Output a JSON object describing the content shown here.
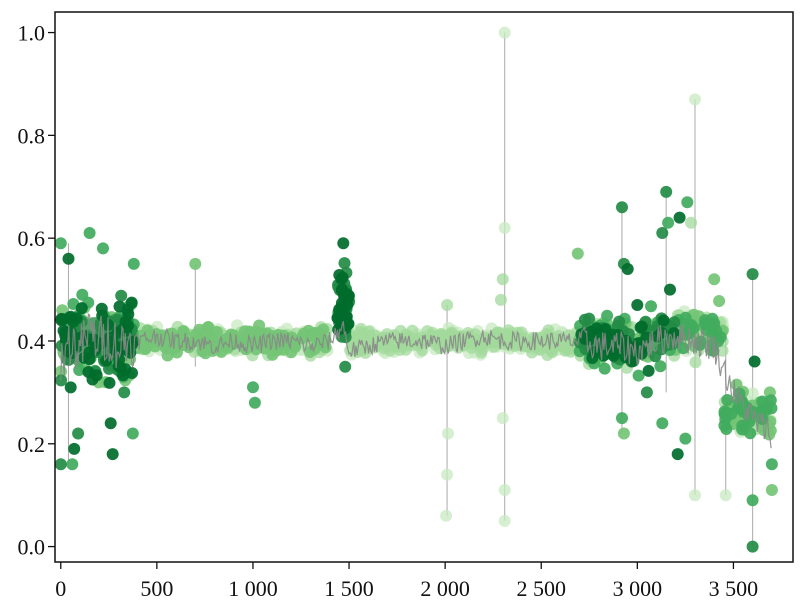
{
  "chart_data": {
    "type": "scatter",
    "title": "",
    "xlabel": "",
    "ylabel": "",
    "xlim": [
      -30,
      3810
    ],
    "ylim": [
      -0.03,
      1.04
    ],
    "grid": false,
    "legend": "none",
    "x_ticks": [
      {
        "value": 0,
        "label": "0"
      },
      {
        "value": 500,
        "label": "500"
      },
      {
        "value": 1000,
        "label": "1 000"
      },
      {
        "value": 1500,
        "label": "1 500"
      },
      {
        "value": 2000,
        "label": "2 000"
      },
      {
        "value": 2500,
        "label": "2 500"
      },
      {
        "value": 3000,
        "label": "3 000"
      },
      {
        "value": 3500,
        "label": "3 500"
      }
    ],
    "y_ticks": [
      {
        "value": 0.0,
        "label": "0.0"
      },
      {
        "value": 0.2,
        "label": "0.2"
      },
      {
        "value": 0.4,
        "label": "0.4"
      },
      {
        "value": 0.6,
        "label": "0.6"
      },
      {
        "value": 0.8,
        "label": "0.8"
      },
      {
        "value": 1.0,
        "label": "1.0"
      }
    ],
    "colors": {
      "trace": "#888888",
      "greens": [
        "#c7e9c0",
        "#a1d99b",
        "#74c476",
        "#41ab5d",
        "#238b45",
        "#006d2c"
      ]
    },
    "trace": [
      [
        0,
        0.36
      ],
      [
        50,
        0.4
      ],
      [
        100,
        0.38
      ],
      [
        150,
        0.42
      ],
      [
        200,
        0.4
      ],
      [
        250,
        0.41
      ],
      [
        300,
        0.39
      ],
      [
        350,
        0.4
      ],
      [
        400,
        0.4
      ],
      [
        500,
        0.41
      ],
      [
        600,
        0.4
      ],
      [
        700,
        0.4
      ],
      [
        800,
        0.39
      ],
      [
        900,
        0.4
      ],
      [
        1000,
        0.39
      ],
      [
        1100,
        0.4
      ],
      [
        1200,
        0.4
      ],
      [
        1300,
        0.39
      ],
      [
        1400,
        0.4
      ],
      [
        1470,
        0.43
      ],
      [
        1500,
        0.38
      ],
      [
        1600,
        0.39
      ],
      [
        1700,
        0.4
      ],
      [
        1800,
        0.4
      ],
      [
        1900,
        0.4
      ],
      [
        2000,
        0.39
      ],
      [
        2100,
        0.4
      ],
      [
        2200,
        0.41
      ],
      [
        2300,
        0.4
      ],
      [
        2400,
        0.4
      ],
      [
        2500,
        0.4
      ],
      [
        2600,
        0.4
      ],
      [
        2700,
        0.4
      ],
      [
        2800,
        0.39
      ],
      [
        2900,
        0.39
      ],
      [
        3000,
        0.38
      ],
      [
        3100,
        0.4
      ],
      [
        3200,
        0.41
      ],
      [
        3300,
        0.4
      ],
      [
        3400,
        0.39
      ],
      [
        3500,
        0.3
      ],
      [
        3600,
        0.25
      ],
      [
        3700,
        0.22
      ]
    ],
    "segments": [
      {
        "x_start": 0,
        "x_end": 380,
        "y_center": 0.4,
        "spread": 0.13,
        "shade_min": 2,
        "shade_max": 5,
        "count": 260
      },
      {
        "x_start": 380,
        "x_end": 1400,
        "y_center": 0.4,
        "spread": 0.045,
        "shade_min": 0,
        "shade_max": 2,
        "count": 360
      },
      {
        "x_start": 1440,
        "x_end": 1500,
        "y_center": 0.47,
        "spread": 0.1,
        "shade_min": 4,
        "shade_max": 5,
        "count": 60
      },
      {
        "x_start": 1500,
        "x_end": 2700,
        "y_center": 0.4,
        "spread": 0.04,
        "shade_min": 0,
        "shade_max": 1,
        "count": 380
      },
      {
        "x_start": 2700,
        "x_end": 3200,
        "y_center": 0.4,
        "spread": 0.08,
        "shade_min": 1,
        "shade_max": 5,
        "count": 240
      },
      {
        "x_start": 3200,
        "x_end": 3450,
        "y_center": 0.42,
        "spread": 0.07,
        "shade_min": 0,
        "shade_max": 3,
        "count": 100
      },
      {
        "x_start": 3450,
        "x_end": 3700,
        "y_center": 0.26,
        "spread": 0.07,
        "shade_min": 0,
        "shade_max": 3,
        "count": 110
      }
    ],
    "outliers": [
      {
        "x": 0,
        "y": 0.59,
        "shade": 3
      },
      {
        "x": 0,
        "y": 0.16,
        "shade": 4
      },
      {
        "x": 40,
        "y": 0.56,
        "shade": 5
      },
      {
        "x": 70,
        "y": 0.19,
        "shade": 5
      },
      {
        "x": 90,
        "y": 0.22,
        "shade": 4
      },
      {
        "x": 60,
        "y": 0.16,
        "shade": 3
      },
      {
        "x": 150,
        "y": 0.61,
        "shade": 3
      },
      {
        "x": 220,
        "y": 0.58,
        "shade": 3
      },
      {
        "x": 260,
        "y": 0.24,
        "shade": 5
      },
      {
        "x": 270,
        "y": 0.18,
        "shade": 5
      },
      {
        "x": 330,
        "y": 0.3,
        "shade": 4
      },
      {
        "x": 380,
        "y": 0.55,
        "shade": 3
      },
      {
        "x": 375,
        "y": 0.22,
        "shade": 3
      },
      {
        "x": 700,
        "y": 0.55,
        "shade": 2
      },
      {
        "x": 1000,
        "y": 0.31,
        "shade": 3
      },
      {
        "x": 1010,
        "y": 0.28,
        "shade": 3
      },
      {
        "x": 1470,
        "y": 0.59,
        "shade": 5
      },
      {
        "x": 1480,
        "y": 0.35,
        "shade": 4
      },
      {
        "x": 2010,
        "y": 0.47,
        "shade": 1
      },
      {
        "x": 2015,
        "y": 0.22,
        "shade": 0
      },
      {
        "x": 2010,
        "y": 0.14,
        "shade": 0
      },
      {
        "x": 2005,
        "y": 0.06,
        "shade": 0
      },
      {
        "x": 2310,
        "y": 1.0,
        "shade": 0
      },
      {
        "x": 2310,
        "y": 0.62,
        "shade": 0
      },
      {
        "x": 2310,
        "y": 0.11,
        "shade": 0
      },
      {
        "x": 2310,
        "y": 0.05,
        "shade": 0
      },
      {
        "x": 2300,
        "y": 0.52,
        "shade": 1
      },
      {
        "x": 2290,
        "y": 0.48,
        "shade": 1
      },
      {
        "x": 2300,
        "y": 0.25,
        "shade": 0
      },
      {
        "x": 2690,
        "y": 0.57,
        "shade": 2
      },
      {
        "x": 2700,
        "y": 0.38,
        "shade": 3
      },
      {
        "x": 2920,
        "y": 0.66,
        "shade": 4
      },
      {
        "x": 2930,
        "y": 0.55,
        "shade": 4
      },
      {
        "x": 2950,
        "y": 0.54,
        "shade": 5
      },
      {
        "x": 2920,
        "y": 0.25,
        "shade": 3
      },
      {
        "x": 2930,
        "y": 0.22,
        "shade": 2
      },
      {
        "x": 3000,
        "y": 0.47,
        "shade": 5
      },
      {
        "x": 2970,
        "y": 0.36,
        "shade": 5
      },
      {
        "x": 3050,
        "y": 0.3,
        "shade": 4
      },
      {
        "x": 3150,
        "y": 0.69,
        "shade": 4
      },
      {
        "x": 3130,
        "y": 0.61,
        "shade": 4
      },
      {
        "x": 3160,
        "y": 0.63,
        "shade": 3
      },
      {
        "x": 3220,
        "y": 0.64,
        "shade": 5
      },
      {
        "x": 3260,
        "y": 0.67,
        "shade": 3
      },
      {
        "x": 3280,
        "y": 0.63,
        "shade": 1
      },
      {
        "x": 3300,
        "y": 0.87,
        "shade": 0
      },
      {
        "x": 3300,
        "y": 0.1,
        "shade": 0
      },
      {
        "x": 3250,
        "y": 0.21,
        "shade": 3
      },
      {
        "x": 3210,
        "y": 0.18,
        "shade": 5
      },
      {
        "x": 3130,
        "y": 0.24,
        "shade": 3
      },
      {
        "x": 3170,
        "y": 0.5,
        "shade": 5
      },
      {
        "x": 3400,
        "y": 0.52,
        "shade": 2
      },
      {
        "x": 3460,
        "y": 0.1,
        "shade": 0
      },
      {
        "x": 3600,
        "y": 0.53,
        "shade": 4
      },
      {
        "x": 3610,
        "y": 0.36,
        "shade": 5
      },
      {
        "x": 3600,
        "y": 0.09,
        "shade": 3
      },
      {
        "x": 3600,
        "y": 0.0,
        "shade": 4
      },
      {
        "x": 3690,
        "y": 0.3,
        "shade": 2
      },
      {
        "x": 3700,
        "y": 0.11,
        "shade": 2
      },
      {
        "x": 3700,
        "y": 0.16,
        "shade": 3
      }
    ],
    "spikes": [
      {
        "x": 2310,
        "y_low": 0.05,
        "y_high": 1.0
      },
      {
        "x": 2010,
        "y_low": 0.06,
        "y_high": 0.47
      },
      {
        "x": 3300,
        "y_low": 0.1,
        "y_high": 0.87
      },
      {
        "x": 3600,
        "y_low": 0.0,
        "y_high": 0.53
      },
      {
        "x": 3150,
        "y_low": 0.3,
        "y_high": 0.69
      },
      {
        "x": 2920,
        "y_low": 0.22,
        "y_high": 0.66
      },
      {
        "x": 40,
        "y_low": 0.16,
        "y_high": 0.59
      },
      {
        "x": 700,
        "y_low": 0.35,
        "y_high": 0.55
      },
      {
        "x": 3460,
        "y_low": 0.1,
        "y_high": 0.4
      }
    ]
  }
}
